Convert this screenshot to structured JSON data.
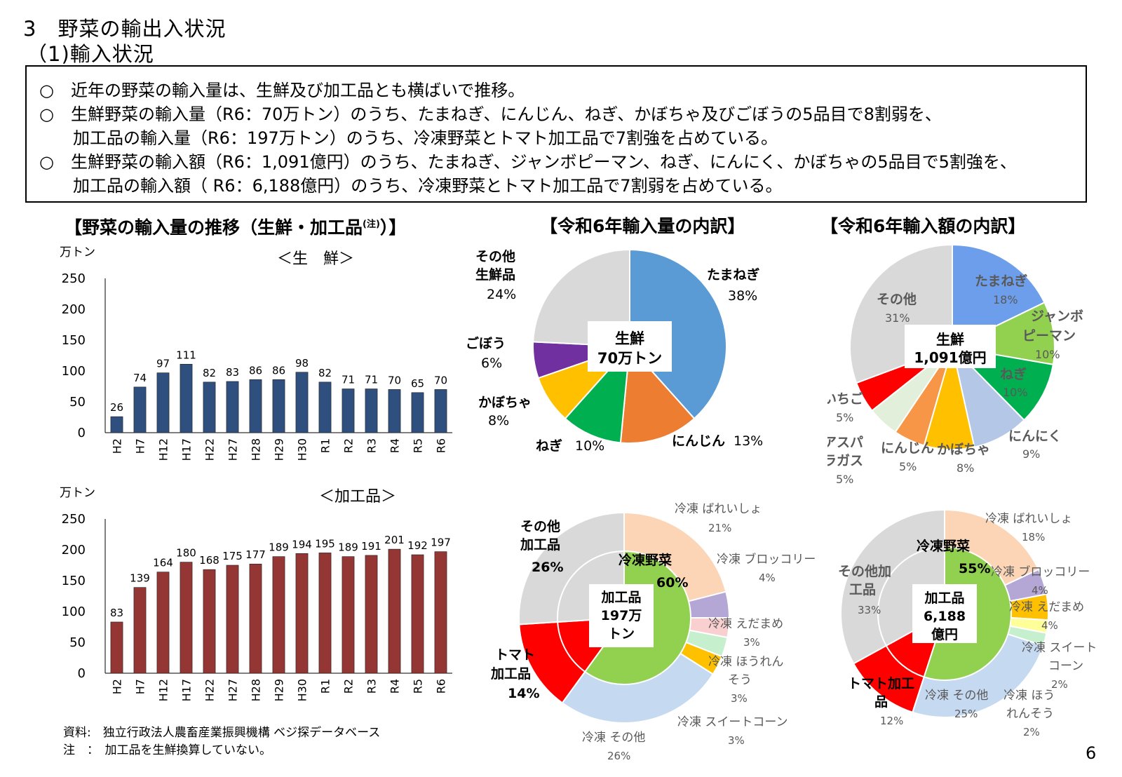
{
  "heading": {
    "section": "3　野菜の輸出入状況",
    "subsection": "（1)輸入状況"
  },
  "summary": [
    "○　近年の野菜の輸入量は、生鮮及び加工品とも横ばいで推移。",
    "○　生鮮野菜の輸入量（R6：70万トン）のうち、たまねぎ、にんじん、ねぎ、かぼちゃ及びごぼうの5品目で8割弱を、",
    "　　加工品の輸入量（R6：197万トン）のうち、冷凍野菜とトマト加工品で7割強を占めている。",
    "○　生鮮野菜の輸入額（R6：1,091億円）のうち、たまねぎ、ジャンボピーマン、ねぎ、にんにく、かぼちゃの5品目で5割強を、",
    "　　加工品の輸入額（ R6：6,188億円）のうち、冷凍野菜とトマト加工品で7割弱を占めている。"
  ],
  "titles": {
    "trend": "【野菜の輸入量の推移（生鮮・加工品",
    "trend_note": "(注)",
    "trend_end": "）】",
    "volume": "【令和6年輸入量の内訳】",
    "value": "【令和6年輸入額の内訳】"
  },
  "chart_data": [
    {
      "type": "bar",
      "title": "＜生　鮮＞",
      "ylabel": "万トン",
      "categories": [
        "H2",
        "H7",
        "H12",
        "H17",
        "H22",
        "H27",
        "H28",
        "H29",
        "H30",
        "R1",
        "R2",
        "R3",
        "R4",
        "R5",
        "R6"
      ],
      "values": [
        26,
        74,
        97,
        111,
        82,
        83,
        86,
        86,
        98,
        82,
        71,
        71,
        70,
        65,
        70
      ],
      "ylim": [
        0,
        250
      ],
      "yticks": [
        0,
        50,
        100,
        150,
        200,
        250
      ],
      "color": "#2f4f7f"
    },
    {
      "type": "bar",
      "title": "＜加工品＞",
      "ylabel": "万トン",
      "categories": [
        "H2",
        "H7",
        "H12",
        "H17",
        "H22",
        "H27",
        "H28",
        "H29",
        "H30",
        "R1",
        "R2",
        "R3",
        "R4",
        "R5",
        "R6"
      ],
      "values": [
        83,
        139,
        164,
        180,
        168,
        175,
        177,
        189,
        194,
        195,
        189,
        191,
        201,
        192,
        197
      ],
      "ylim": [
        0,
        250
      ],
      "yticks": [
        0,
        50,
        100,
        150,
        200,
        250
      ],
      "color": "#943634"
    },
    {
      "type": "pie",
      "center_label": [
        "生鮮",
        "70万トン"
      ],
      "slices": [
        {
          "label": "たまねぎ",
          "value": 38,
          "pct": "38%",
          "color": "#5b9bd5"
        },
        {
          "label": "にんじん",
          "value": 13,
          "pct": "13%",
          "color": "#ed7d31"
        },
        {
          "label": "ねぎ",
          "value": 10,
          "pct": "10%",
          "color": "#00b050"
        },
        {
          "label": "かぼちゃ",
          "value": 8,
          "pct": "8%",
          "color": "#ffc000"
        },
        {
          "label": "ごぼう",
          "value": 6,
          "pct": "6%",
          "color": "#7030a0"
        },
        {
          "label": "その他生鮮品",
          "value": 24,
          "pct": "24%",
          "color": "#d9d9d9"
        }
      ]
    },
    {
      "type": "pie",
      "center_label": [
        "生鮮",
        "1,091億円"
      ],
      "slices": [
        {
          "label": "たまねぎ",
          "value": 18,
          "pct": "18%",
          "color": "#6d9eeb"
        },
        {
          "label": "ジャンボピーマン",
          "value": 10,
          "pct": "10%",
          "color": "#92d050"
        },
        {
          "label": "ねぎ",
          "value": 10,
          "pct": "10%",
          "color": "#00b050"
        },
        {
          "label": "にんにく",
          "value": 9,
          "pct": "9%",
          "color": "#b4c7e7"
        },
        {
          "label": "かぼちゃ",
          "value": 8,
          "pct": "8%",
          "color": "#ffc000"
        },
        {
          "label": "にんじん",
          "value": 5,
          "pct": "5%",
          "color": "#f79646"
        },
        {
          "label": "アスパラガス",
          "value": 5,
          "pct": "5%",
          "color": "#e2efda"
        },
        {
          "label": "いちご",
          "value": 5,
          "pct": "5%",
          "color": "#ff0000"
        },
        {
          "label": "その他",
          "value": 31,
          "pct": "31%",
          "color": "#d9d9d9"
        }
      ]
    },
    {
      "type": "pie",
      "center_label": [
        "加工品",
        "197万",
        "トン"
      ],
      "inner_ring": [
        {
          "label": "冷凍野菜",
          "value": 60,
          "pct": "60%",
          "color": "#92d050"
        },
        {
          "label": "トマト加工品",
          "value": 14,
          "pct": "14%",
          "color": "#ff0000"
        },
        {
          "label": "その他加工品",
          "value": 26,
          "pct": "26%",
          "color": "#d9d9d9"
        }
      ],
      "slices": [
        {
          "label": "冷凍 ばれいしょ",
          "value": 21,
          "pct": "21%",
          "color": "#fbd5b5"
        },
        {
          "label": "冷凍 ブロッコリー",
          "value": 4,
          "pct": "4%",
          "color": "#b4a7d6"
        },
        {
          "label": "冷凍 えだまめ",
          "value": 3,
          "pct": "3%",
          "color": "#f9cfcf"
        },
        {
          "label": "冷凍 ほうれんそう",
          "value": 3,
          "pct": "3%",
          "color": "#c6efce"
        },
        {
          "label": "冷凍 スイートコーン",
          "value": 3,
          "pct": "3%",
          "color": "#ffc000"
        },
        {
          "label": "冷凍 その他",
          "value": 26,
          "pct": "26%",
          "color": "#c5d9f1"
        },
        {
          "label": "トマト加工品",
          "value": 14,
          "pct": "14%",
          "color": "#ff0000"
        },
        {
          "label": "その他加工品",
          "value": 26,
          "pct": "26%",
          "color": "#d9d9d9"
        }
      ]
    },
    {
      "type": "pie",
      "center_label": [
        "加工品",
        "6,188",
        "億円"
      ],
      "inner_ring": [
        {
          "label": "冷凍野菜",
          "value": 55,
          "pct": "55%",
          "color": "#92d050"
        },
        {
          "label": "トマト加工品",
          "value": 12,
          "pct": "12%",
          "color": "#ff0000"
        },
        {
          "label": "その他加工品",
          "value": 33,
          "pct": "33%",
          "color": "#d9d9d9"
        }
      ],
      "slices": [
        {
          "label": "冷凍 ばれいしょ",
          "value": 18,
          "pct": "18%",
          "color": "#fbd5b5"
        },
        {
          "label": "冷凍 ブロッコリー",
          "value": 4,
          "pct": "4%",
          "color": "#b4a7d6"
        },
        {
          "label": "冷凍 えだまめ",
          "value": 4,
          "pct": "4%",
          "color": "#ffc000"
        },
        {
          "label": "冷凍 スイートコーン",
          "value": 2,
          "pct": "2%",
          "color": "#ffff99"
        },
        {
          "label": "冷凍 ほうれんそう",
          "value": 2,
          "pct": "2%",
          "color": "#c6efce"
        },
        {
          "label": "冷凍 その他",
          "value": 25,
          "pct": "25%",
          "color": "#c5d9f1"
        },
        {
          "label": "トマト加工品",
          "value": 12,
          "pct": "12%",
          "color": "#ff0000"
        },
        {
          "label": "その他加工品",
          "value": 33,
          "pct": "33%",
          "color": "#d9d9d9"
        }
      ]
    }
  ],
  "labels": {
    "v1": {
      "tamanegi": "たまねぎ",
      "tamanegi_p": "38%",
      "ninjin": "にんじん",
      "ninjin_p": "13%",
      "negi": "ねぎ",
      "negi_p": "10%",
      "kabocha": "かぼちゃ",
      "kabocha_p": "8%",
      "gobo": "ごぼう",
      "gobo_p": "6%",
      "other1": "その他",
      "other2": "生鮮品",
      "other_p": "24%"
    },
    "v2": {
      "tamanegi": "たまねぎ",
      "tamanegi_p": "18%",
      "jumbo1": "ジャンボ",
      "jumbo2": "ピーマン",
      "jumbo_p": "10%",
      "negi": "ねぎ",
      "negi_p": "10%",
      "ninniku": "にんにく",
      "ninniku_p": "9%",
      "kabocha": "かぼちゃ",
      "kabocha_p": "8%",
      "ninjin": "にんじん",
      "ninjin_p": "5%",
      "asupara1": "アスパ",
      "asupara2": "ラガス",
      "asupara_p": "5%",
      "ichigo": "いちご",
      "ichigo_p": "5%",
      "other": "その他",
      "other_p": "31%"
    },
    "v3": {
      "bareisho": "冷凍 ばれいしょ",
      "bareisho_p": "21%",
      "broc": "冷凍 ブロッコリー",
      "broc_p": "4%",
      "eda": "冷凍 えだまめ",
      "eda_p": "3%",
      "hou1": "冷凍 ほうれん",
      "hou2": "そう",
      "hou_p": "3%",
      "corn": "冷凍 スイートコーン",
      "corn_p": "3%",
      "sonota": "冷凍 その他",
      "sonota_p": "26%",
      "reitou": "冷凍野菜",
      "reitou_p": "60%",
      "tomato1": "トマト",
      "tomato2": "加工品",
      "tomato_p": "14%",
      "other1": "その他",
      "other2": "加工品",
      "other_p": "26%"
    },
    "v4": {
      "bareisho": "冷凍 ばれいしょ",
      "bareisho_p": "18%",
      "broc": "冷凍 ブロッコリー",
      "broc_p": "4%",
      "eda": "冷凍 えだまめ",
      "eda_p": "4%",
      "corn1": "冷凍 スイート",
      "corn2": "コーン",
      "corn_p": "2%",
      "hou1": "冷凍 ほう",
      "hou2": "れんそう",
      "hou_p": "2%",
      "sonota": "冷凍 その他",
      "sonota_p": "25%",
      "reitou": "冷凍野菜",
      "reitou_p": "55%",
      "tomato1": "トマト加工",
      "tomato2": "品",
      "tomato_p": "12%",
      "other1": "その他加",
      "other2": "工品",
      "other_p": "33%"
    }
  },
  "footnotes": {
    "source": "資料:　独立行政法人農畜産業振興機構 ベジ探データベース",
    "note": "注　：　加工品を生鮮換算していない。"
  },
  "page_number": "6"
}
